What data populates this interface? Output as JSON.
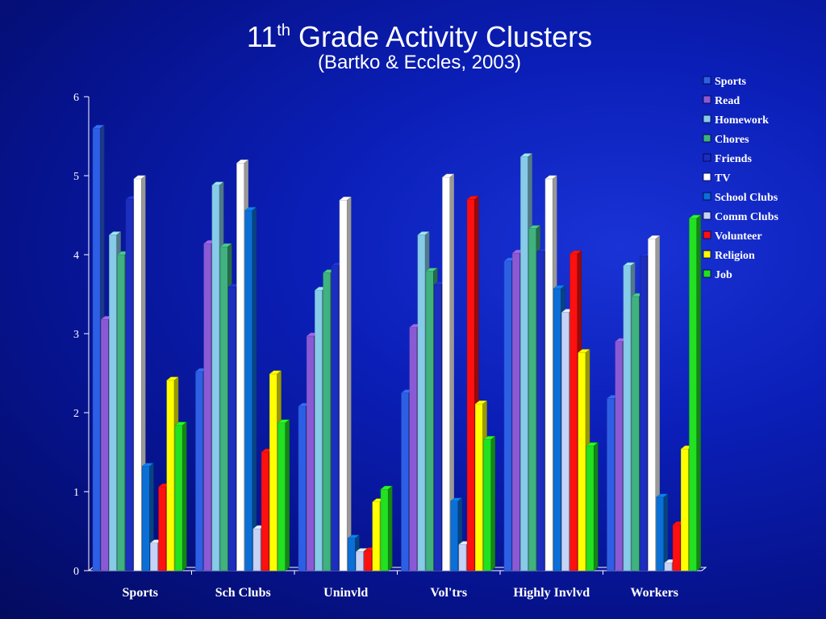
{
  "title_main": "11",
  "title_sup": "th",
  "title_rest": " Grade Activity Clusters",
  "subtitle": "(Bartko & Eccles, 2003)",
  "chart_data": {
    "type": "bar",
    "title": "11th Grade Activity Clusters",
    "subtitle": "(Bartko & Eccles, 2003)",
    "xlabel": "",
    "ylabel": "",
    "ylim": [
      0,
      6
    ],
    "yticks": [
      0,
      1,
      2,
      3,
      4,
      5,
      6
    ],
    "legend_position": "right",
    "grid": false,
    "categories": [
      "Sports",
      "Sch Clubs",
      "Uninvld",
      "Vol'trs",
      "Highly Invlvd",
      "Workers"
    ],
    "series": [
      {
        "name": "Sports",
        "color": "#2d5fe6",
        "values": [
          5.6,
          2.52,
          2.08,
          2.25,
          3.92,
          2.18
        ]
      },
      {
        "name": "Read",
        "color": "#8a5ad6",
        "values": [
          3.18,
          4.14,
          2.97,
          3.08,
          4.02,
          2.9
        ]
      },
      {
        "name": "Homework",
        "color": "#86cbe8",
        "values": [
          4.25,
          4.88,
          3.55,
          4.25,
          5.24,
          3.86
        ]
      },
      {
        "name": "Chores",
        "color": "#3fb27f",
        "values": [
          4.0,
          4.1,
          3.77,
          3.79,
          4.33,
          3.47
        ]
      },
      {
        "name": "Friends",
        "color": "#1b2ec0",
        "values": [
          4.7,
          3.59,
          3.86,
          3.62,
          4.04,
          3.98
        ]
      },
      {
        "name": "TV",
        "color": "#ffffff",
        "values": [
          4.96,
          5.16,
          4.69,
          4.98,
          4.96,
          4.2
        ]
      },
      {
        "name": "School Clubs",
        "color": "#0b6fd8",
        "values": [
          1.32,
          4.56,
          0.41,
          0.88,
          3.57,
          0.93
        ]
      },
      {
        "name": "Comm Clubs",
        "color": "#c7d2f7",
        "values": [
          0.35,
          0.53,
          0.24,
          0.33,
          3.27,
          0.1
        ]
      },
      {
        "name": "Volunteer",
        "color": "#ff1010",
        "values": [
          1.06,
          1.5,
          0.25,
          4.7,
          4.01,
          0.58
        ]
      },
      {
        "name": "Religion",
        "color": "#ffff00",
        "values": [
          2.41,
          2.49,
          0.87,
          2.11,
          2.76,
          1.54
        ]
      },
      {
        "name": "Job",
        "color": "#22e022",
        "values": [
          1.84,
          1.87,
          1.03,
          1.66,
          1.58,
          4.46
        ]
      }
    ]
  }
}
